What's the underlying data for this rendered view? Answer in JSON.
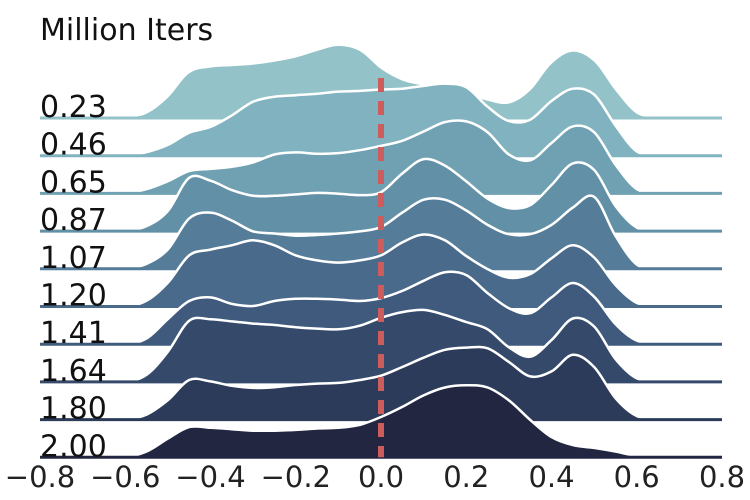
{
  "chart_data": {
    "type": "area",
    "title": "Million Iters",
    "xlim": [
      -0.8,
      0.8
    ],
    "x_ticks": [
      "−0.8",
      "−0.6",
      "−0.4",
      "−0.2",
      "0.0",
      "0.2",
      "0.4",
      "0.6",
      "0.8"
    ],
    "x_tick_values": [
      -0.8,
      -0.6,
      -0.4,
      -0.2,
      0.0,
      0.2,
      0.4,
      0.6,
      0.8
    ],
    "reference_line": {
      "x": 0.0,
      "style": "dashed",
      "color": "#cd5c5c"
    },
    "curve_x": [
      -0.8,
      -0.7,
      -0.6,
      -0.55,
      -0.5,
      -0.45,
      -0.4,
      -0.35,
      -0.3,
      -0.25,
      -0.2,
      -0.15,
      -0.1,
      -0.05,
      0.0,
      0.05,
      0.1,
      0.15,
      0.2,
      0.25,
      0.3,
      0.35,
      0.4,
      0.45,
      0.5,
      0.55,
      0.6,
      0.65,
      0.7,
      0.8
    ],
    "series": [
      {
        "name": "0.23",
        "color": "#93c2c8",
        "values": [
          0,
          0,
          0.01,
          0.06,
          0.28,
          0.62,
          0.7,
          0.72,
          0.74,
          0.78,
          0.84,
          0.93,
          1.0,
          0.93,
          0.68,
          0.52,
          0.45,
          0.4,
          0.33,
          0.24,
          0.2,
          0.38,
          0.75,
          0.92,
          0.78,
          0.38,
          0.06,
          0.01,
          0,
          0
        ]
      },
      {
        "name": "0.46",
        "color": "#80b3bf",
        "values": [
          0,
          0,
          0.01,
          0.05,
          0.15,
          0.32,
          0.4,
          0.56,
          0.75,
          0.82,
          0.84,
          0.86,
          0.89,
          0.9,
          0.92,
          0.93,
          0.97,
          1.0,
          0.95,
          0.68,
          0.48,
          0.5,
          0.76,
          0.93,
          0.85,
          0.42,
          0.06,
          0.01,
          0,
          0
        ]
      },
      {
        "name": "0.65",
        "color": "#6fa1b2",
        "values": [
          0,
          0,
          0.01,
          0.06,
          0.17,
          0.31,
          0.34,
          0.37,
          0.43,
          0.54,
          0.57,
          0.55,
          0.56,
          0.6,
          0.66,
          0.73,
          0.86,
          0.99,
          1.0,
          0.85,
          0.54,
          0.46,
          0.7,
          0.93,
          0.85,
          0.4,
          0.06,
          0.01,
          0,
          0
        ]
      },
      {
        "name": "0.87",
        "color": "#6290a6",
        "values": [
          0,
          0,
          0.01,
          0.07,
          0.28,
          0.74,
          0.7,
          0.57,
          0.49,
          0.49,
          0.51,
          0.53,
          0.52,
          0.5,
          0.54,
          0.8,
          1.0,
          0.91,
          0.69,
          0.45,
          0.32,
          0.36,
          0.64,
          0.94,
          0.85,
          0.35,
          0.05,
          0.01,
          0,
          0
        ]
      },
      {
        "name": "1.07",
        "color": "#557d99",
        "values": [
          0,
          0,
          0.01,
          0.07,
          0.27,
          0.7,
          0.78,
          0.67,
          0.52,
          0.49,
          0.46,
          0.47,
          0.49,
          0.52,
          0.58,
          0.78,
          0.96,
          0.96,
          0.81,
          0.61,
          0.48,
          0.48,
          0.61,
          0.85,
          1.0,
          0.46,
          0.06,
          0.01,
          0,
          0
        ]
      },
      {
        "name": "1.20",
        "color": "#4a6a8b",
        "values": [
          0,
          0,
          0.01,
          0.08,
          0.33,
          0.71,
          0.79,
          0.85,
          0.92,
          0.85,
          0.71,
          0.64,
          0.61,
          0.64,
          0.71,
          0.89,
          1.0,
          0.92,
          0.7,
          0.52,
          0.4,
          0.45,
          0.67,
          0.85,
          0.68,
          0.3,
          0.05,
          0.01,
          0,
          0
        ]
      },
      {
        "name": "1.41",
        "color": "#3f5a7d",
        "values": [
          0,
          0,
          0.01,
          0.08,
          0.35,
          0.6,
          0.65,
          0.56,
          0.53,
          0.6,
          0.63,
          0.63,
          0.62,
          0.6,
          0.64,
          0.74,
          0.88,
          1.0,
          0.96,
          0.71,
          0.5,
          0.43,
          0.65,
          0.85,
          0.66,
          0.28,
          0.05,
          0.01,
          0,
          0
        ]
      },
      {
        "name": "1.64",
        "color": "#354a6b",
        "values": [
          0,
          0,
          0.01,
          0.1,
          0.42,
          0.85,
          0.87,
          0.84,
          0.81,
          0.79,
          0.76,
          0.74,
          0.73,
          0.78,
          0.89,
          0.97,
          1.0,
          0.93,
          0.83,
          0.73,
          0.48,
          0.35,
          0.58,
          0.88,
          0.77,
          0.32,
          0.05,
          0.01,
          0,
          0
        ]
      },
      {
        "name": "1.80",
        "color": "#2c3b59",
        "values": [
          0,
          0,
          0.01,
          0.07,
          0.27,
          0.55,
          0.53,
          0.47,
          0.44,
          0.45,
          0.48,
          0.5,
          0.51,
          0.55,
          0.61,
          0.73,
          0.86,
          0.97,
          1.0,
          0.99,
          0.8,
          0.6,
          0.67,
          0.9,
          0.73,
          0.3,
          0.05,
          0.01,
          0,
          0
        ]
      },
      {
        "name": "2.00",
        "color": "#222641",
        "values": [
          0,
          0,
          0.01,
          0.08,
          0.26,
          0.42,
          0.41,
          0.39,
          0.37,
          0.37,
          0.38,
          0.4,
          0.41,
          0.45,
          0.56,
          0.7,
          0.86,
          0.97,
          1.0,
          0.97,
          0.79,
          0.52,
          0.28,
          0.17,
          0.13,
          0.08,
          0.02,
          0.01,
          0,
          0
        ]
      }
    ]
  }
}
